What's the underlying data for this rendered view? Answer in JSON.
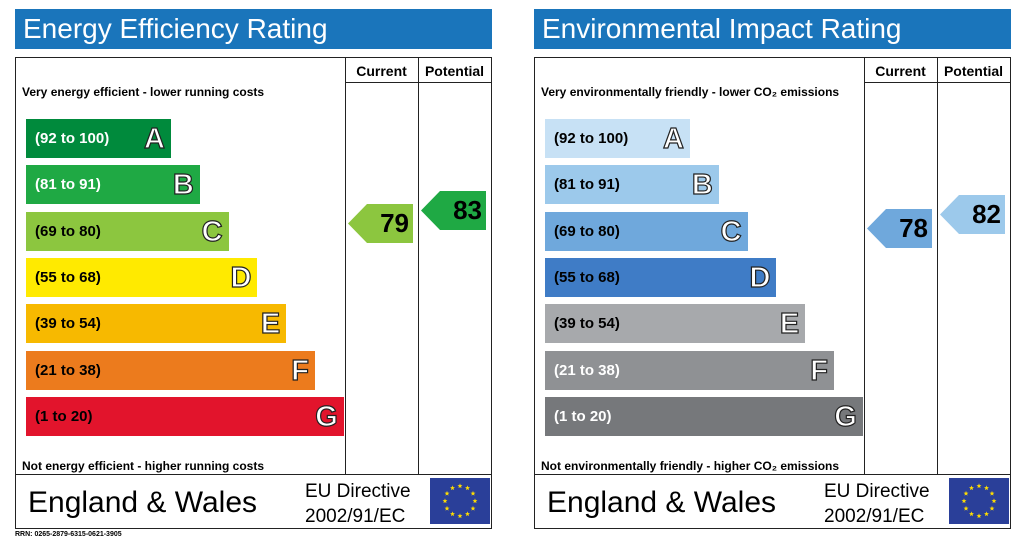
{
  "panels": [
    {
      "title": "Energy Efficiency Rating",
      "title_color": "#1a75bb",
      "col_current": "Current",
      "col_potential": "Potential",
      "top_caption": "Very energy efficient - lower running costs",
      "bottom_caption": "Not energy efficient - higher running costs",
      "footer_region": "England & Wales",
      "directive_line1": "EU Directive",
      "directive_line2": "2002/91/EC",
      "bands": [
        {
          "range": "(92 to 100)",
          "letter": "A",
          "color": "#008a3c",
          "text_color": "#ffffff"
        },
        {
          "range": "(81 to 91)",
          "letter": "B",
          "color": "#1fa944",
          "text_color": "#ffffff"
        },
        {
          "range": "(69 to 80)",
          "letter": "C",
          "color": "#8cc63f",
          "text_color": "#000000"
        },
        {
          "range": "(55 to 68)",
          "letter": "D",
          "color": "#ffea00",
          "text_color": "#000000"
        },
        {
          "range": "(39 to 54)",
          "letter": "E",
          "color": "#f7b900",
          "text_color": "#000000"
        },
        {
          "range": "(21 to 38)",
          "letter": "F",
          "color": "#ec7b1d",
          "text_color": "#000000"
        },
        {
          "range": "(1 to 20)",
          "letter": "G",
          "color": "#e2142c",
          "text_color": "#000000"
        }
      ],
      "current": {
        "value": "79",
        "color": "#8cc63f"
      },
      "potential": {
        "value": "83",
        "color": "#1fa944"
      }
    },
    {
      "title": "Environmental Impact Rating",
      "title_color": "#1a75bb",
      "col_current": "Current",
      "col_potential": "Potential",
      "top_caption": "Very environmentally friendly - lower CO₂ emissions",
      "bottom_caption": "Not environmentally friendly - higher CO₂ emissions",
      "footer_region": "England & Wales",
      "directive_line1": "EU Directive",
      "directive_line2": "2002/91/EC",
      "bands": [
        {
          "range": "(92 to 100)",
          "letter": "A",
          "color": "#c7e1f5",
          "text_color": "#000000"
        },
        {
          "range": "(81 to 91)",
          "letter": "B",
          "color": "#9cc9eb",
          "text_color": "#000000"
        },
        {
          "range": "(69 to 80)",
          "letter": "C",
          "color": "#6fa8dc",
          "text_color": "#000000"
        },
        {
          "range": "(55 to 68)",
          "letter": "D",
          "color": "#3f7cc6",
          "text_color": "#000000"
        },
        {
          "range": "(39 to 54)",
          "letter": "E",
          "color": "#a7a9ac",
          "text_color": "#000000"
        },
        {
          "range": "(21 to 38)",
          "letter": "F",
          "color": "#8f9194",
          "text_color": "#ffffff"
        },
        {
          "range": "(1 to 20)",
          "letter": "G",
          "color": "#76787b",
          "text_color": "#ffffff"
        }
      ],
      "current": {
        "value": "78",
        "color": "#6fa8dc"
      },
      "potential": {
        "value": "82",
        "color": "#9cc9eb"
      }
    }
  ],
  "rrn": "RRN: 0265-2879-6315-0621-3905",
  "chart_data": [
    {
      "type": "bar",
      "title": "Energy Efficiency Rating",
      "categories": [
        "A",
        "B",
        "C",
        "D",
        "E",
        "F",
        "G"
      ],
      "ranges": [
        "(92 to 100)",
        "(81 to 91)",
        "(69 to 80)",
        "(55 to 68)",
        "(39 to 54)",
        "(21 to 38)",
        "(1 to 20)"
      ],
      "current": 79,
      "potential": 83
    },
    {
      "type": "bar",
      "title": "Environmental Impact Rating",
      "categories": [
        "A",
        "B",
        "C",
        "D",
        "E",
        "F",
        "G"
      ],
      "ranges": [
        "(92 to 100)",
        "(81 to 91)",
        "(69 to 80)",
        "(55 to 68)",
        "(39 to 54)",
        "(21 to 38)",
        "(1 to 20)"
      ],
      "current": 78,
      "potential": 82
    }
  ]
}
